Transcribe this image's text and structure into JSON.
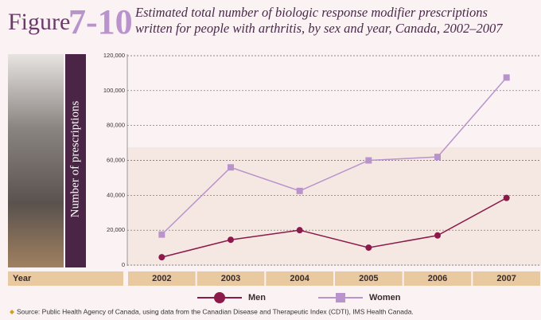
{
  "header": {
    "figure_word": "Figure",
    "figure_number": "7-10",
    "title": "Estimated total number of biologic response modifier prescriptions written for people with arthritis, by sex and year, Canada, 2002–2007"
  },
  "chart_data": {
    "type": "line",
    "x_label": "Year",
    "y_label": "Number of prescriptions",
    "categories": [
      "2002",
      "2003",
      "2004",
      "2005",
      "2006",
      "2007"
    ],
    "series": [
      {
        "name": "Men",
        "color": "#8b1a4a",
        "marker": "circle",
        "values": [
          4500,
          14500,
          20000,
          10000,
          17000,
          38500
        ]
      },
      {
        "name": "Women",
        "color": "#b993cc",
        "marker": "square",
        "values": [
          17500,
          56000,
          42500,
          60000,
          62000,
          107500
        ]
      }
    ],
    "ylim": [
      0,
      120000
    ],
    "yticks": [
      0,
      {
        "value": 20000,
        "label": "20,000"
      },
      {
        "value": 40000,
        "label": "40,000"
      },
      {
        "value": 60000,
        "label": "60,000"
      },
      {
        "value": 80000,
        "label": "80,000"
      },
      {
        "value": 100000,
        "label": "100,000"
      },
      {
        "value": 120000,
        "label": "120,000"
      }
    ],
    "grid": true
  },
  "source": "Source: Public Health Agency of Canada, using data from the Canadian Disease and Therapeutic Index (CDTI), IMS Health Canada."
}
